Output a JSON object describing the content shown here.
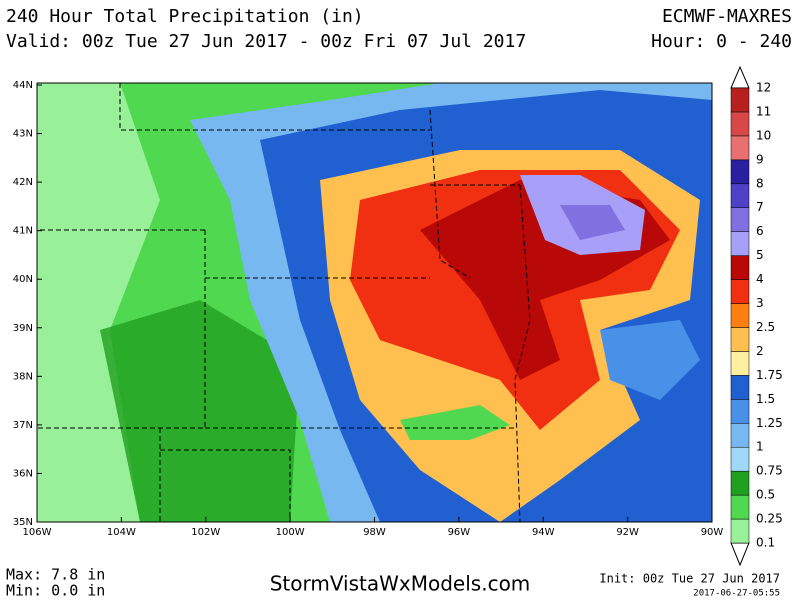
{
  "header": {
    "title": "240 Hour Total Precipitation (in)",
    "valid": "Valid: 00z Tue 27 Jun 2017 - 00z Fri 07 Jul 2017",
    "model": "ECMWF-MAXRES",
    "hours": "Hour: 0 - 240"
  },
  "map": {
    "lat_labels": [
      "44N",
      "43N",
      "42N",
      "41N",
      "40N",
      "39N",
      "38N",
      "37N",
      "36N",
      "35N"
    ],
    "lon_labels": [
      "106W",
      "104W",
      "102W",
      "100W",
      "98W",
      "96W",
      "94W",
      "92W",
      "90W"
    ]
  },
  "colorbar": {
    "labels": [
      "0.1",
      "0.25",
      "0.5",
      "0.75",
      "1",
      "1.25",
      "1.5",
      "1.75",
      "2",
      "2.5",
      "3",
      "4",
      "5",
      "6",
      "7",
      "8",
      "9",
      "10",
      "11",
      "12"
    ],
    "colors": [
      "#98f098",
      "#50d850",
      "#20a020",
      "#a0d8f8",
      "#78b8f0",
      "#4890e8",
      "#2060d0",
      "#fff0a0",
      "#ffc050",
      "#ff8010",
      "#f03010",
      "#b80808",
      "#a8a0f8",
      "#8070e0",
      "#5040c8",
      "#2820a0",
      "#e87070",
      "#d84848",
      "#b82020"
    ]
  },
  "footer": {
    "max": "Max: 7.8 in",
    "min": "Min: 0.0 in",
    "site": "StormVistaWxModels.com",
    "init": "Init: 00z Tue 27 Jun 2017",
    "stamp": "2017-06-27-05:55"
  }
}
